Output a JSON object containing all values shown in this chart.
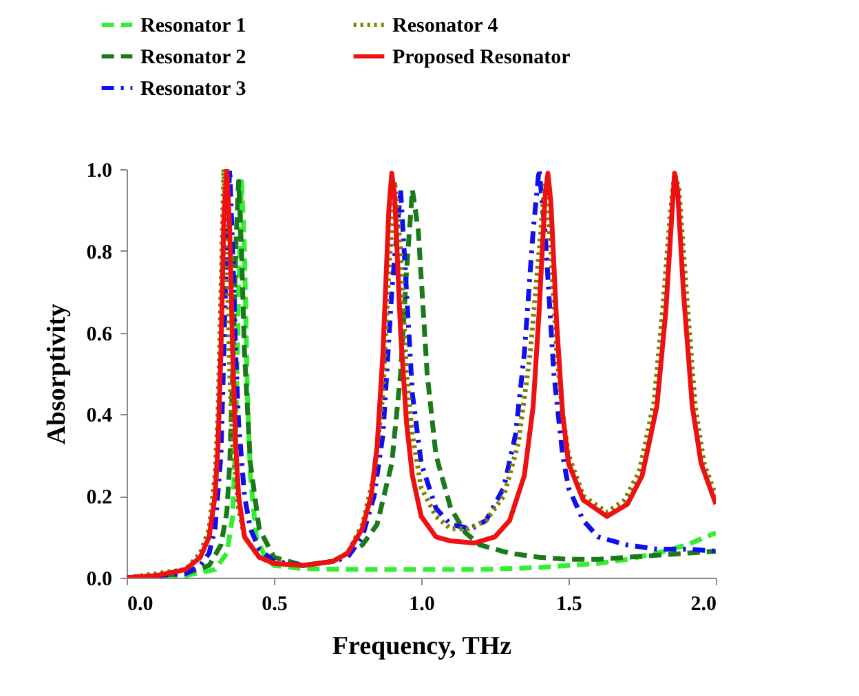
{
  "chart_data": {
    "type": "line",
    "xlabel": "Frequency, THz",
    "ylabel": "Absorptivity",
    "xlim": [
      0,
      2
    ],
    "ylim": [
      0,
      1
    ],
    "xticks": [
      {
        "value": 0,
        "label": "0.0"
      },
      {
        "value": 0.5,
        "label": "0.5"
      },
      {
        "value": 1,
        "label": "1.0"
      },
      {
        "value": 1.5,
        "label": "1.5"
      },
      {
        "value": 2,
        "label": "2.0"
      }
    ],
    "yticks": [
      {
        "value": 0,
        "label": "0.0"
      },
      {
        "value": 0.2,
        "label": "0.2"
      },
      {
        "value": 0.4,
        "label": "0.4"
      },
      {
        "value": 0.6,
        "label": "0.6"
      },
      {
        "value": 0.8,
        "label": "0.8"
      },
      {
        "value": 1,
        "label": "1.0"
      }
    ],
    "grid": false,
    "legend": "top",
    "series": [
      {
        "name": "Resonator 1",
        "color": "#33ee33",
        "line_style": "dashed",
        "x": [
          0,
          0.2,
          0.3,
          0.34,
          0.36,
          0.37,
          0.38,
          0.39,
          0.4,
          0.41,
          0.42,
          0.44,
          0.47,
          0.5,
          0.6,
          0.8,
          1.0,
          1.2,
          1.4,
          1.6,
          1.7,
          1.8,
          1.9,
          2.0
        ],
        "values": [
          0,
          0.005,
          0.02,
          0.06,
          0.15,
          0.35,
          0.7,
          0.97,
          0.8,
          0.45,
          0.25,
          0.1,
          0.05,
          0.03,
          0.022,
          0.02,
          0.02,
          0.02,
          0.025,
          0.035,
          0.045,
          0.06,
          0.08,
          0.11
        ]
      },
      {
        "name": "Resonator 2",
        "color": "#1a7a1a",
        "line_style": "dashed",
        "x": [
          0,
          0.2,
          0.28,
          0.32,
          0.34,
          0.35,
          0.36,
          0.37,
          0.38,
          0.39,
          0.4,
          0.42,
          0.45,
          0.5,
          0.6,
          0.7,
          0.8,
          0.85,
          0.9,
          0.93,
          0.95,
          0.97,
          0.99,
          1.02,
          1.05,
          1.1,
          1.15,
          1.2,
          1.3,
          1.4,
          1.5,
          1.6,
          1.7,
          1.8,
          1.9,
          2.0
        ],
        "values": [
          0,
          0.01,
          0.03,
          0.08,
          0.16,
          0.28,
          0.5,
          0.8,
          0.97,
          0.8,
          0.55,
          0.28,
          0.12,
          0.05,
          0.03,
          0.04,
          0.08,
          0.13,
          0.28,
          0.5,
          0.75,
          0.95,
          0.85,
          0.5,
          0.3,
          0.17,
          0.11,
          0.08,
          0.06,
          0.05,
          0.045,
          0.045,
          0.05,
          0.055,
          0.06,
          0.065
        ]
      },
      {
        "name": "Resonator 3",
        "color": "#1010ee",
        "line_style": "dashdot",
        "x": [
          0,
          0.2,
          0.25,
          0.28,
          0.3,
          0.32,
          0.33,
          0.34,
          0.35,
          0.36,
          0.37,
          0.38,
          0.4,
          0.42,
          0.45,
          0.5,
          0.6,
          0.7,
          0.75,
          0.8,
          0.84,
          0.87,
          0.9,
          0.93,
          0.95,
          0.97,
          1.0,
          1.05,
          1.1,
          1.17,
          1.22,
          1.28,
          1.32,
          1.35,
          1.38,
          1.4,
          1.42,
          1.45,
          1.48,
          1.5,
          1.55,
          1.6,
          1.7,
          1.8,
          1.9,
          2.0
        ],
        "values": [
          0,
          0.01,
          0.03,
          0.06,
          0.12,
          0.3,
          0.55,
          0.85,
          1.0,
          0.8,
          0.55,
          0.38,
          0.2,
          0.12,
          0.07,
          0.04,
          0.03,
          0.04,
          0.05,
          0.1,
          0.2,
          0.35,
          0.7,
          0.95,
          0.7,
          0.45,
          0.28,
          0.17,
          0.13,
          0.12,
          0.14,
          0.22,
          0.35,
          0.55,
          0.85,
          1.0,
          0.85,
          0.5,
          0.3,
          0.22,
          0.14,
          0.1,
          0.08,
          0.07,
          0.07,
          0.065
        ]
      },
      {
        "name": "Resonator 4",
        "color": "#808000",
        "line_style": "dotted",
        "x": [
          0,
          0.2,
          0.25,
          0.28,
          0.3,
          0.31,
          0.32,
          0.33,
          0.34,
          0.35,
          0.36,
          0.38,
          0.4,
          0.45,
          0.5,
          0.6,
          0.7,
          0.75,
          0.8,
          0.84,
          0.87,
          0.89,
          0.91,
          0.93,
          0.95,
          0.97,
          1.0,
          1.05,
          1.1,
          1.16,
          1.22,
          1.28,
          1.33,
          1.37,
          1.4,
          1.42,
          1.44,
          1.46,
          1.48,
          1.5,
          1.55,
          1.63,
          1.69,
          1.74,
          1.79,
          1.82,
          1.845,
          1.86,
          1.875,
          1.9,
          1.93,
          1.96,
          2.0
        ],
        "values": [
          0,
          0.02,
          0.06,
          0.12,
          0.25,
          0.4,
          0.7,
          1.0,
          0.8,
          0.5,
          0.32,
          0.17,
          0.1,
          0.05,
          0.035,
          0.03,
          0.04,
          0.06,
          0.13,
          0.25,
          0.45,
          0.75,
          0.97,
          0.8,
          0.5,
          0.35,
          0.22,
          0.15,
          0.12,
          0.12,
          0.14,
          0.2,
          0.33,
          0.55,
          0.8,
          0.97,
          0.8,
          0.55,
          0.4,
          0.3,
          0.2,
          0.16,
          0.19,
          0.26,
          0.43,
          0.66,
          0.89,
          0.99,
          0.95,
          0.7,
          0.42,
          0.28,
          0.2
        ]
      },
      {
        "name": "Proposed Resonator",
        "color": "#ee1111",
        "line_style": "solid",
        "x": [
          0,
          0.1,
          0.2,
          0.25,
          0.28,
          0.3,
          0.31,
          0.32,
          0.33,
          0.34,
          0.35,
          0.36,
          0.37,
          0.38,
          0.4,
          0.45,
          0.5,
          0.6,
          0.7,
          0.75,
          0.8,
          0.83,
          0.85,
          0.87,
          0.89,
          0.9,
          0.91,
          0.93,
          0.95,
          0.97,
          1.0,
          1.05,
          1.1,
          1.18,
          1.25,
          1.3,
          1.35,
          1.38,
          1.4,
          1.42,
          1.43,
          1.44,
          1.46,
          1.48,
          1.5,
          1.55,
          1.63,
          1.7,
          1.75,
          1.8,
          1.83,
          1.85,
          1.86,
          1.87,
          1.89,
          1.92,
          1.95,
          2.0
        ],
        "values": [
          0,
          0.005,
          0.02,
          0.05,
          0.1,
          0.2,
          0.32,
          0.55,
          0.88,
          1.0,
          0.85,
          0.55,
          0.33,
          0.2,
          0.1,
          0.05,
          0.035,
          0.03,
          0.04,
          0.06,
          0.12,
          0.2,
          0.32,
          0.55,
          0.9,
          0.99,
          0.93,
          0.6,
          0.38,
          0.25,
          0.15,
          0.1,
          0.09,
          0.085,
          0.1,
          0.14,
          0.25,
          0.42,
          0.65,
          0.93,
          0.99,
          0.92,
          0.62,
          0.4,
          0.28,
          0.19,
          0.15,
          0.18,
          0.25,
          0.42,
          0.65,
          0.88,
          0.99,
          0.95,
          0.7,
          0.42,
          0.28,
          0.18
        ]
      }
    ]
  }
}
